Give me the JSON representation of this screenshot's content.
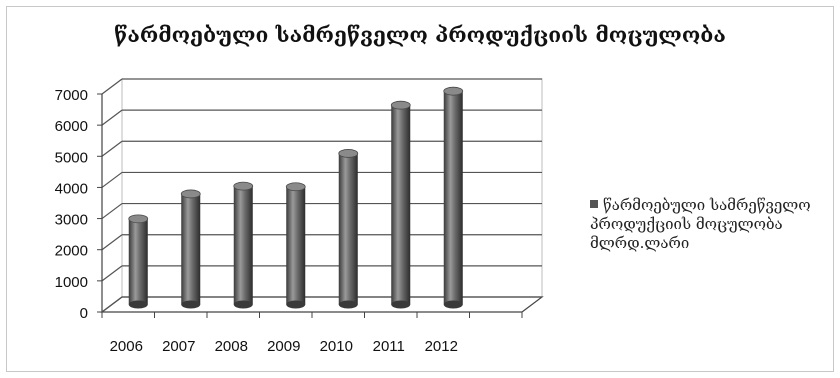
{
  "chart_data": {
    "type": "bar",
    "title": "წარმოებული სამრეწველო პროდუქციის მოცულობა",
    "categories": [
      "2006",
      "2007",
      "2008",
      "2009",
      "2010",
      "2011",
      "2012"
    ],
    "series": [
      {
        "name": "წარმოებული სამრეწველო პროდუქციის მოცულობა მლრდ.ლარი",
        "values": [
          2750,
          3550,
          3800,
          3780,
          4850,
          6400,
          6850
        ]
      }
    ],
    "yticks": [
      "0",
      "1000",
      "2000",
      "3000",
      "4000",
      "5000",
      "6000",
      "7000"
    ],
    "ylim": [
      0,
      7000
    ],
    "xlabel": "",
    "ylabel": "",
    "grid": true,
    "legend_position": "right",
    "bar_color": "#6e6e6e"
  },
  "legend": {
    "line1": "წარმოებული სამრეწველო",
    "line2": "პროდუქციის მოცულობა",
    "line3": "მლრდ.ლარი"
  }
}
